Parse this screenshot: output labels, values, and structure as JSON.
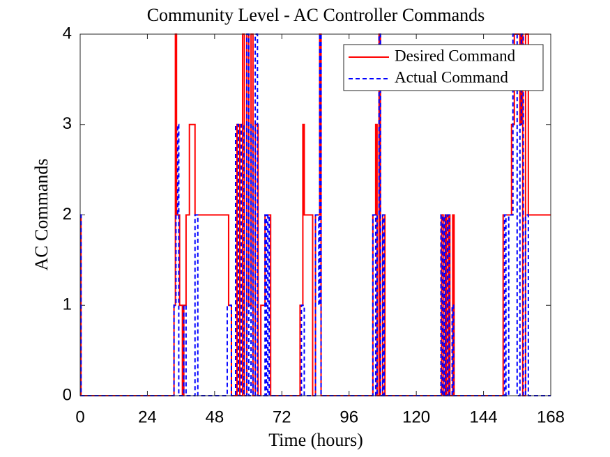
{
  "chart_data": {
    "type": "line",
    "title": "Community Level - AC Controller Commands",
    "x_label": "Time (hours)",
    "y_label": "AC Commands",
    "xlim": [
      0,
      168
    ],
    "xticks": [
      0,
      24,
      48,
      72,
      96,
      120,
      144,
      168
    ],
    "ylim": [
      0,
      4
    ],
    "yticks": [
      0,
      1,
      2,
      3,
      4
    ],
    "legend": "upper right",
    "series": [
      {
        "name": "Desired Command",
        "color": "#ff0000",
        "dash": false,
        "x": [
          0,
          0.3,
          0.3,
          33.5,
          33.5,
          34,
          34,
          34.4,
          34.4,
          35.5,
          35.5,
          36.5,
          36.5,
          37,
          37,
          37.8,
          37.8,
          39,
          39,
          41,
          41,
          53,
          53,
          54,
          54,
          56,
          56,
          57,
          57,
          58,
          58,
          58.6,
          58.6,
          59.5,
          59.5,
          60.2,
          60.2,
          61,
          61,
          61.7,
          61.7,
          62.5,
          62.5,
          63.5,
          63.5,
          64.5,
          64.5,
          66,
          66,
          68,
          68,
          78.5,
          78.5,
          79.5,
          79.5,
          80,
          80,
          83,
          83,
          84,
          84,
          85.5,
          85.5,
          86,
          86,
          104.5,
          104.5,
          105.5,
          105.5,
          106,
          106,
          106.7,
          106.7,
          107.2,
          107.2,
          108,
          108,
          108.8,
          108.8,
          129,
          129,
          129.6,
          129.6,
          130.3,
          130.3,
          130.8,
          130.8,
          131.5,
          131.5,
          132,
          132,
          133,
          133,
          133.5,
          133.5,
          151,
          151,
          154,
          154,
          155,
          155,
          157,
          157,
          157.5,
          157.5,
          158,
          158,
          159,
          159,
          160,
          160,
          168
        ],
        "values": [
          2,
          2,
          0,
          0,
          1,
          1,
          4,
          4,
          2,
          2,
          1,
          1,
          0,
          0,
          1,
          1,
          2,
          2,
          3,
          3,
          2,
          2,
          1,
          1,
          0,
          0,
          3,
          3,
          0,
          0,
          4,
          4,
          0,
          0,
          4,
          4,
          1,
          1,
          4,
          4,
          0,
          0,
          3,
          3,
          0,
          0,
          1,
          1,
          2,
          2,
          0,
          0,
          1,
          1,
          3,
          3,
          2,
          2,
          0,
          0,
          2,
          2,
          4,
          4,
          0,
          0,
          2,
          2,
          3,
          3,
          0,
          0,
          4,
          4,
          0,
          0,
          2,
          2,
          0,
          0,
          2,
          2,
          0,
          0,
          2,
          2,
          0,
          0,
          2,
          2,
          0,
          0,
          2,
          2,
          0,
          0,
          2,
          2,
          3,
          3,
          4,
          4,
          3,
          3,
          4,
          4,
          0,
          0,
          4,
          4,
          2,
          2
        ]
      },
      {
        "name": "Actual Command",
        "color": "#0000ff",
        "dash": true,
        "x": [
          0,
          0.3,
          0.3,
          33.5,
          33.5,
          34.2,
          34.2,
          34.8,
          34.8,
          35.2,
          35.2,
          37,
          37,
          37.8,
          37.8,
          41,
          41,
          42,
          42,
          52.5,
          52.5,
          54,
          54,
          55.5,
          55.5,
          56.5,
          56.5,
          57.5,
          57.5,
          58.5,
          58.5,
          59.5,
          59.5,
          60.2,
          60.2,
          61,
          61,
          61.7,
          61.7,
          62.5,
          62.5,
          63.3,
          63.3,
          66,
          66,
          66.5,
          66.5,
          67,
          67,
          67.5,
          67.5,
          79,
          79,
          80,
          80,
          84,
          84,
          85.2,
          85.2,
          85.5,
          85.5,
          86,
          86,
          104.5,
          104.5,
          105.5,
          105.5,
          106,
          106,
          106.7,
          106.7,
          107.2,
          107.2,
          108,
          108,
          108.5,
          108.5,
          128.8,
          128.8,
          129.4,
          129.4,
          130,
          130,
          130.5,
          130.5,
          131.2,
          131.2,
          131.8,
          131.8,
          132.8,
          132.8,
          133.3,
          133.3,
          151.5,
          151.5,
          152,
          152,
          153,
          153,
          154.5,
          154.5,
          156,
          156,
          157,
          157,
          157.5,
          157.5,
          158.2,
          158.2,
          159,
          159,
          160,
          160,
          168
        ],
        "values": [
          2,
          2,
          0,
          0,
          1,
          1,
          2,
          2,
          3,
          3,
          0,
          0,
          1,
          1,
          0,
          0,
          2,
          2,
          0,
          0,
          1,
          1,
          0,
          0,
          3,
          3,
          0,
          0,
          3,
          3,
          0,
          0,
          4,
          4,
          0,
          0,
          3,
          3,
          0,
          0,
          4,
          4,
          0,
          0,
          2,
          2,
          0,
          0,
          2,
          2,
          0,
          0,
          1,
          1,
          0,
          0,
          2,
          2,
          1,
          1,
          4,
          4,
          0,
          0,
          2,
          2,
          0,
          0,
          2,
          2,
          4,
          4,
          0,
          0,
          2,
          2,
          0,
          0,
          2,
          2,
          0,
          0,
          2,
          2,
          0,
          0,
          2,
          2,
          0,
          0,
          1,
          1,
          0,
          0,
          2,
          2,
          0,
          0,
          2,
          2,
          4,
          4,
          0,
          0,
          3,
          3,
          4,
          4,
          0,
          0,
          2,
          2,
          0,
          0
        ]
      }
    ]
  }
}
